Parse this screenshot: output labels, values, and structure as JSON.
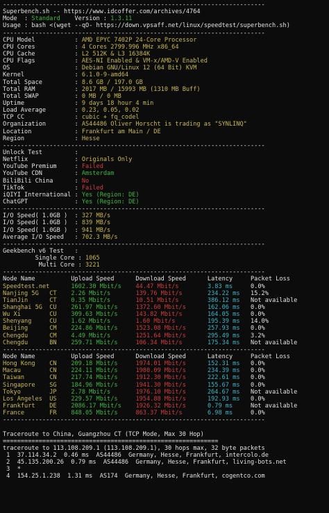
{
  "colors": {
    "default": "#d4d4d4",
    "white": "#e2e2e2",
    "green": "#3fb63f",
    "yellow": "#c9b84a",
    "red": "#d23b3b",
    "cyan": "#36b7c7"
  },
  "lines": [
    {
      "segs": [
        {
          "t": "-------------------------------------------------------------------------",
          "c": "white"
        }
      ]
    },
    {
      "segs": [
        {
          "t": "Superbench.sh -- https://www.idcoffer.com/archives/4764",
          "c": "white"
        }
      ]
    },
    {
      "segs": [
        {
          "t": "Mode  : ",
          "c": "white"
        },
        {
          "t": "Standard",
          "c": "green"
        },
        {
          "t": "    Version : ",
          "c": "white"
        },
        {
          "t": "1.3.11",
          "c": "green"
        }
      ]
    },
    {
      "segs": [
        {
          "t": "Usage : bash <(wget --qO- https://down.vpsaff.net/linux/speedtest/superbench.sh)",
          "c": "white"
        }
      ]
    },
    {
      "segs": [
        {
          "t": "-------------------------------------------------------------------------",
          "c": "white"
        }
      ]
    },
    {
      "segs": [
        {
          "t": "CPU Model           : ",
          "c": "white"
        },
        {
          "t": "AMD EPYC 7402P 24-Core Processor",
          "c": "yellow"
        }
      ]
    },
    {
      "segs": [
        {
          "t": "CPU Cores           : ",
          "c": "white"
        },
        {
          "t": "4 Cores 2799.996 MHz x86_64",
          "c": "yellow"
        }
      ]
    },
    {
      "segs": [
        {
          "t": "CPU Cache           : ",
          "c": "white"
        },
        {
          "t": "L2 512K & L3 16384K",
          "c": "yellow"
        }
      ]
    },
    {
      "segs": [
        {
          "t": "CPU Flags           : ",
          "c": "white"
        },
        {
          "t": "AES-NI Enabled & VM-x/AMD-V Enabled",
          "c": "yellow"
        }
      ]
    },
    {
      "segs": [
        {
          "t": "OS                  : ",
          "c": "white"
        },
        {
          "t": "Debian GNU/Linux 12 (64 Bit) KVM",
          "c": "yellow"
        }
      ]
    },
    {
      "segs": [
        {
          "t": "Kernel              : ",
          "c": "white"
        },
        {
          "t": "6.1.0-9-amd64",
          "c": "yellow"
        }
      ]
    },
    {
      "segs": [
        {
          "t": "Total Space         : ",
          "c": "white"
        },
        {
          "t": "8.6 GB / 197.0 GB",
          "c": "yellow"
        }
      ]
    },
    {
      "segs": [
        {
          "t": "Total RAM           : ",
          "c": "white"
        },
        {
          "t": "2017 MB / 15993 MB (1310 MB Buff)",
          "c": "yellow"
        }
      ]
    },
    {
      "segs": [
        {
          "t": "Total SWAP          : ",
          "c": "white"
        },
        {
          "t": "0 MB / 0 MB",
          "c": "yellow"
        }
      ]
    },
    {
      "segs": [
        {
          "t": "Uptime              : ",
          "c": "white"
        },
        {
          "t": "9 days 18 hour 4 min",
          "c": "yellow"
        }
      ]
    },
    {
      "segs": [
        {
          "t": "Load Average        : ",
          "c": "white"
        },
        {
          "t": "0.23, 0.05, 0.02",
          "c": "yellow"
        }
      ]
    },
    {
      "segs": [
        {
          "t": "TCP CC              : ",
          "c": "white"
        },
        {
          "t": "cubic + fq_codel",
          "c": "yellow"
        }
      ]
    },
    {
      "segs": [
        {
          "t": "Organization        : ",
          "c": "white"
        },
        {
          "t": "AS44486 Oliver Horscht is trading as \"SYNLINQ\"",
          "c": "yellow"
        }
      ]
    },
    {
      "segs": [
        {
          "t": "Location            : ",
          "c": "white"
        },
        {
          "t": "Frankfurt am Main / DE",
          "c": "yellow"
        }
      ]
    },
    {
      "segs": [
        {
          "t": "Region              : ",
          "c": "white"
        },
        {
          "t": "Hesse",
          "c": "yellow"
        }
      ]
    },
    {
      "segs": [
        {
          "t": "-------------------------------------------------------------------------",
          "c": "white"
        }
      ]
    },
    {
      "segs": [
        {
          "t": "Unlock Test         :",
          "c": "white"
        }
      ]
    },
    {
      "segs": [
        {
          "t": "Netflix             : ",
          "c": "white"
        },
        {
          "t": "Originals Only",
          "c": "yellow"
        }
      ]
    },
    {
      "segs": [
        {
          "t": "YouTube Premium     : ",
          "c": "white"
        },
        {
          "t": "Failed",
          "c": "red"
        }
      ]
    },
    {
      "segs": [
        {
          "t": "YouTube CDN         : ",
          "c": "white"
        },
        {
          "t": "Amsterdam",
          "c": "green"
        }
      ]
    },
    {
      "segs": [
        {
          "t": "BiliBili China      : ",
          "c": "white"
        },
        {
          "t": "No",
          "c": "red"
        }
      ]
    },
    {
      "segs": [
        {
          "t": "TikTok              : ",
          "c": "white"
        },
        {
          "t": "Failed",
          "c": "red"
        }
      ]
    },
    {
      "segs": [
        {
          "t": "iQIYI International : ",
          "c": "white"
        },
        {
          "t": "Yes (Region: DE)",
          "c": "green"
        }
      ]
    },
    {
      "segs": [
        {
          "t": "ChatGPT             : ",
          "c": "white"
        },
        {
          "t": "Yes (Region: DE)",
          "c": "green"
        }
      ]
    },
    {
      "segs": [
        {
          "t": "-------------------------------------------------------------------------",
          "c": "white"
        }
      ]
    },
    {
      "segs": [
        {
          "t": "I/O Speed( 1.0GB )  : ",
          "c": "white"
        },
        {
          "t": "327 MB/s",
          "c": "yellow"
        }
      ]
    },
    {
      "segs": [
        {
          "t": "I/O Speed( 1.0GB )  : ",
          "c": "white"
        },
        {
          "t": "839 MB/s",
          "c": "yellow"
        }
      ]
    },
    {
      "segs": [
        {
          "t": "I/O Speed( 1.0GB )  : ",
          "c": "white"
        },
        {
          "t": "941 MB/s",
          "c": "yellow"
        }
      ]
    },
    {
      "segs": [
        {
          "t": "Average I/O Speed   : ",
          "c": "white"
        },
        {
          "t": "702.3 MB/s",
          "c": "yellow"
        }
      ]
    },
    {
      "segs": [
        {
          "t": "-------------------------------------------------------------------------",
          "c": "white"
        }
      ]
    },
    {
      "segs": [
        {
          "t": "Geekbench v6 Test   :",
          "c": "white"
        }
      ]
    },
    {
      "segs": [
        {
          "t": "         Single Core : ",
          "c": "white"
        },
        {
          "t": "1065",
          "c": "yellow"
        }
      ]
    },
    {
      "segs": [
        {
          "t": "          Multi Core : ",
          "c": "white"
        },
        {
          "t": "3221",
          "c": "yellow"
        }
      ]
    },
    {
      "segs": [
        {
          "t": "-------------------------------------------------------------------------",
          "c": "white"
        }
      ]
    },
    {
      "segs": [
        {
          "t": "Node Name          Upload Speed      Download Speed      Latency     Packet Loss",
          "c": "white"
        }
      ]
    },
    {
      "segs": [
        {
          "t": "Speedtest.net      ",
          "c": "yellow"
        },
        {
          "t": "1602.30 Mbit/s    ",
          "c": "green"
        },
        {
          "t": "44.47 Mbit/s        ",
          "c": "red"
        },
        {
          "t": "3.83 ms     ",
          "c": "cyan"
        },
        {
          "t": "0.0%",
          "c": "white"
        }
      ]
    },
    {
      "segs": [
        {
          "t": "Nanjing 5G   CT    ",
          "c": "yellow"
        },
        {
          "t": "2.26 Mbit/s       ",
          "c": "green"
        },
        {
          "t": "139.76 Mbit/s       ",
          "c": "red"
        },
        {
          "t": "234.22 ms   ",
          "c": "cyan"
        },
        {
          "t": "15.2%",
          "c": "white"
        }
      ]
    },
    {
      "segs": [
        {
          "t": "TianJin      CT    ",
          "c": "yellow"
        },
        {
          "t": "0.35 Mbit/s       ",
          "c": "green"
        },
        {
          "t": "10.51 Mbit/s        ",
          "c": "red"
        },
        {
          "t": "386.12 ms   ",
          "c": "cyan"
        },
        {
          "t": "Not available",
          "c": "white"
        }
      ]
    },
    {
      "segs": [
        {
          "t": "Shanghai 5G  CU    ",
          "c": "yellow"
        },
        {
          "t": "261.97 Mbit/s     ",
          "c": "green"
        },
        {
          "t": "1372.60 Mbit/s      ",
          "c": "red"
        },
        {
          "t": "162.06 ms   ",
          "c": "cyan"
        },
        {
          "t": "0.0%",
          "c": "white"
        }
      ]
    },
    {
      "segs": [
        {
          "t": "Wu Xi        CU    ",
          "c": "yellow"
        },
        {
          "t": "309.63 Mbit/s     ",
          "c": "green"
        },
        {
          "t": "143.82 Mbit/s       ",
          "c": "red"
        },
        {
          "t": "164.05 ms   ",
          "c": "cyan"
        },
        {
          "t": "0.0%",
          "c": "white"
        }
      ]
    },
    {
      "segs": [
        {
          "t": "Shenyang     CU    ",
          "c": "yellow"
        },
        {
          "t": "1.62 Mbit/s       ",
          "c": "green"
        },
        {
          "t": "1.60 Mbit/s         ",
          "c": "red"
        },
        {
          "t": "195.39 ms   ",
          "c": "cyan"
        },
        {
          "t": "14.0%",
          "c": "white"
        }
      ]
    },
    {
      "segs": [
        {
          "t": "Beijing      CM    ",
          "c": "yellow"
        },
        {
          "t": "224.86 Mbit/s     ",
          "c": "green"
        },
        {
          "t": "1523.08 Mbit/s      ",
          "c": "red"
        },
        {
          "t": "257.93 ms   ",
          "c": "cyan"
        },
        {
          "t": "0.0%",
          "c": "white"
        }
      ]
    },
    {
      "segs": [
        {
          "t": "Chengdu      CM    ",
          "c": "yellow"
        },
        {
          "t": "4.49 Mbit/s       ",
          "c": "green"
        },
        {
          "t": "1251.64 Mbit/s      ",
          "c": "red"
        },
        {
          "t": "295.49 ms   ",
          "c": "cyan"
        },
        {
          "t": "3.2%",
          "c": "white"
        }
      ]
    },
    {
      "segs": [
        {
          "t": "Chengdu      BN    ",
          "c": "yellow"
        },
        {
          "t": "259.71 Mbit/s     ",
          "c": "green"
        },
        {
          "t": "106.34 Mbit/s       ",
          "c": "red"
        },
        {
          "t": "175.34 ms   ",
          "c": "cyan"
        },
        {
          "t": "Not available",
          "c": "white"
        }
      ]
    },
    {
      "segs": [
        {
          "t": "-------------------------------------------------------------------------",
          "c": "white"
        }
      ]
    },
    {
      "segs": [
        {
          "t": "Node Name          Upload Speed      Download Speed      Latency     Packet Loss",
          "c": "white"
        }
      ]
    },
    {
      "segs": [
        {
          "t": "Hong Kong    CN    ",
          "c": "yellow"
        },
        {
          "t": "209.18 Mbit/s     ",
          "c": "green"
        },
        {
          "t": "1974.01 Mbit/s      ",
          "c": "red"
        },
        {
          "t": "152.31 ms   ",
          "c": "cyan"
        },
        {
          "t": "0.0%",
          "c": "white"
        }
      ]
    },
    {
      "segs": [
        {
          "t": "Macau        CN    ",
          "c": "yellow"
        },
        {
          "t": "224.11 Mbit/s     ",
          "c": "green"
        },
        {
          "t": "1980.09 Mbit/s      ",
          "c": "red"
        },
        {
          "t": "234.39 ms   ",
          "c": "cyan"
        },
        {
          "t": "0.0%",
          "c": "white"
        }
      ]
    },
    {
      "segs": [
        {
          "t": "Taiwan       CN    ",
          "c": "yellow"
        },
        {
          "t": "217.74 Mbit/s     ",
          "c": "green"
        },
        {
          "t": "1912.30 Mbit/s      ",
          "c": "red"
        },
        {
          "t": "222.61 ms   ",
          "c": "cyan"
        },
        {
          "t": "0.0%",
          "c": "white"
        }
      ]
    },
    {
      "segs": [
        {
          "t": "Singapore    SG    ",
          "c": "yellow"
        },
        {
          "t": "184.96 Mbit/s     ",
          "c": "green"
        },
        {
          "t": "1941.30 Mbit/s      ",
          "c": "red"
        },
        {
          "t": "155.67 ms   ",
          "c": "cyan"
        },
        {
          "t": "0.0%",
          "c": "white"
        }
      ]
    },
    {
      "segs": [
        {
          "t": "Tokyo        JP    ",
          "c": "yellow"
        },
        {
          "t": "2.78 Mbit/s       ",
          "c": "green"
        },
        {
          "t": "1976.10 Mbit/s      ",
          "c": "red"
        },
        {
          "t": "264.67 ms   ",
          "c": "cyan"
        },
        {
          "t": "Not available",
          "c": "white"
        }
      ]
    },
    {
      "segs": [
        {
          "t": "Los Angeles  US    ",
          "c": "yellow"
        },
        {
          "t": "229.57 Mbit/s     ",
          "c": "green"
        },
        {
          "t": "1954.88 Mbit/s      ",
          "c": "red"
        },
        {
          "t": "192.93 ms   ",
          "c": "cyan"
        },
        {
          "t": "0.0%",
          "c": "white"
        }
      ]
    },
    {
      "segs": [
        {
          "t": "Frankfurt    DE    ",
          "c": "yellow"
        },
        {
          "t": "2086.17 Mbit/s    ",
          "c": "green"
        },
        {
          "t": "1926.32 Mbit/s      ",
          "c": "red"
        },
        {
          "t": "0.79 ms     ",
          "c": "cyan"
        },
        {
          "t": "Not available",
          "c": "white"
        }
      ]
    },
    {
      "segs": [
        {
          "t": "France       FR    ",
          "c": "yellow"
        },
        {
          "t": "848.05 Mbit/s     ",
          "c": "green"
        },
        {
          "t": "863.37 Mbit/s       ",
          "c": "red"
        },
        {
          "t": "6.98 ms     ",
          "c": "cyan"
        },
        {
          "t": "0.0%",
          "c": "white"
        }
      ]
    },
    {
      "segs": [
        {
          "t": "-------------------------------------------------------------------------",
          "c": "white"
        }
      ]
    },
    {
      "segs": [
        {
          "t": "",
          "c": "white"
        }
      ]
    },
    {
      "segs": [
        {
          "t": "Traceroute to China, Guangzhou CT (TCP Mode, Max 30 Hop)",
          "c": "white"
        }
      ]
    },
    {
      "segs": [
        {
          "t": "============================================================",
          "c": "white"
        }
      ]
    },
    {
      "segs": [
        {
          "t": "traceroute to 113.108.209.1 (113.108.209.1), 30 hops max, 32 byte packets",
          "c": "white"
        }
      ]
    },
    {
      "segs": [
        {
          "t": " 1  37.114.34.2  0.46 ms  AS44486  Germany, Hesse, Frankfurt, intercolo.de",
          "c": "white"
        }
      ]
    },
    {
      "segs": [
        {
          "t": " 2  45.135.200.26  0.79 ms  AS44486  Germany, Hesse, Frankfurt, living-bots.net",
          "c": "white"
        }
      ]
    },
    {
      "segs": [
        {
          "t": " 3  *",
          "c": "white"
        }
      ]
    },
    {
      "segs": [
        {
          "t": " 4  154.25.1.238  1.31 ms  AS174  Germany, Hesse, Frankfurt, cogentco.com",
          "c": "white"
        }
      ]
    }
  ]
}
